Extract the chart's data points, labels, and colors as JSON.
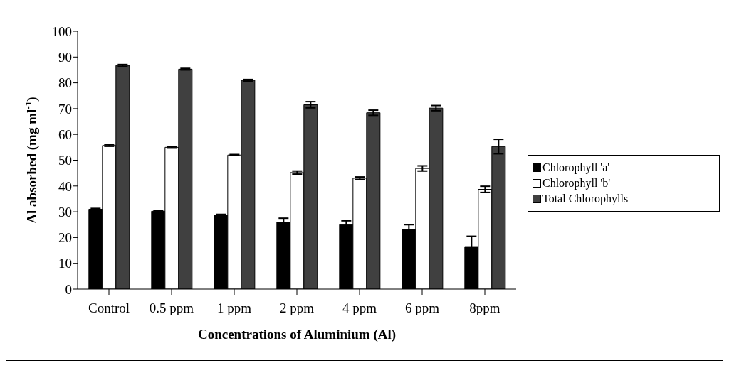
{
  "chart_data": {
    "type": "bar",
    "xlabel": "Concentrations of Aluminium (Al)",
    "ylabel": "Al absorbed (mg ml$^{-1}$)",
    "categories": [
      "Control",
      "0.5 ppm",
      "1 ppm",
      "2 ppm",
      "4 ppm",
      "6 ppm",
      "8ppm"
    ],
    "series": [
      {
        "name": "Chlorophyll 'a'",
        "color": "#000000",
        "values": [
          31,
          30.2,
          28.7,
          26,
          25,
          23,
          16.5
        ],
        "errors": [
          0.3,
          0.3,
          0.3,
          1.5,
          1.5,
          2,
          4
        ]
      },
      {
        "name": "Chlorophyll 'b'",
        "color": "#ffffff",
        "values": [
          55.7,
          55,
          52,
          45.2,
          43,
          46.8,
          38.7
        ],
        "errors": [
          0.3,
          0.3,
          0.2,
          0.6,
          0.5,
          1,
          1.2
        ]
      },
      {
        "name": "Total Chlorophylls",
        "color": "#404040",
        "values": [
          86.7,
          85.3,
          81,
          71.5,
          68.4,
          70.2,
          55.3
        ],
        "errors": [
          0.4,
          0.3,
          0.3,
          1.2,
          1,
          1,
          2.8
        ]
      }
    ],
    "ylim": [
      0,
      100
    ],
    "yticks": [
      0,
      10,
      20,
      30,
      40,
      50,
      60,
      70,
      80,
      90,
      100
    ],
    "grid": false,
    "legend": "right"
  }
}
